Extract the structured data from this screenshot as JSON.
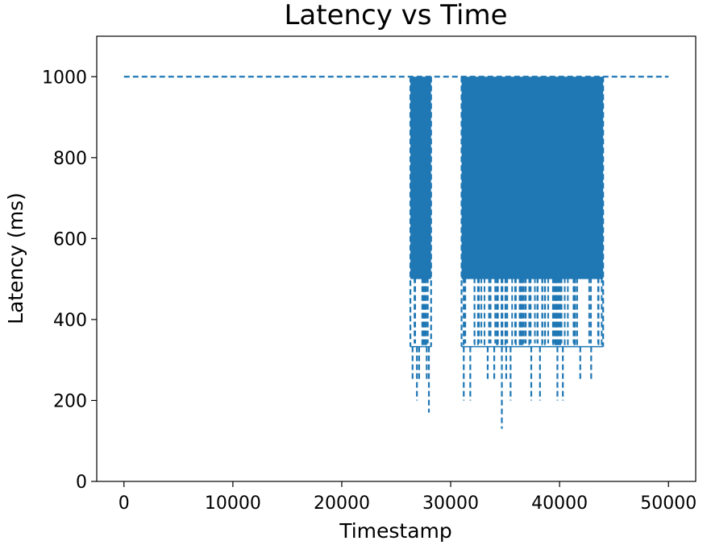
{
  "chart_data": {
    "type": "line",
    "title": "Latency vs Time",
    "xlabel": "Timestamp",
    "ylabel": "Latency (ms)",
    "xlim": [
      -2500,
      52500
    ],
    "ylim": [
      0,
      1100
    ],
    "xticks": [
      0,
      10000,
      20000,
      30000,
      40000,
      50000
    ],
    "xtick_labels": [
      "0",
      "10000",
      "20000",
      "30000",
      "40000",
      "50000"
    ],
    "yticks": [
      0,
      200,
      400,
      600,
      800,
      1000
    ],
    "ytick_labels": [
      "0",
      "200",
      "400",
      "600",
      "800",
      "1000"
    ],
    "grid": false,
    "line_style": "dashed",
    "colors": {
      "series": "#1f77b4",
      "axes": "#000000",
      "background": "#ffffff"
    },
    "series": [
      {
        "baseline": 1000,
        "x_range": [
          0,
          50000
        ],
        "bursts": [
          {
            "x_range": [
              26300,
              28200
            ],
            "band_top": 1000,
            "band_bottom": 500,
            "floor": 333,
            "low_spikes": [
              {
                "x": 26500,
                "y": 250
              },
              {
                "x": 26900,
                "y": 200
              },
              {
                "x": 27100,
                "y": 250
              },
              {
                "x": 27800,
                "y": 250
              },
              {
                "x": 28000,
                "y": 170
              }
            ]
          },
          {
            "x_range": [
              31000,
              44000
            ],
            "band_top": 1000,
            "band_bottom": 500,
            "floor": 333,
            "low_spikes": [
              {
                "x": 31200,
                "y": 200
              },
              {
                "x": 31800,
                "y": 200
              },
              {
                "x": 33400,
                "y": 250
              },
              {
                "x": 34000,
                "y": 250
              },
              {
                "x": 34700,
                "y": 130
              },
              {
                "x": 35100,
                "y": 250
              },
              {
                "x": 35500,
                "y": 200
              },
              {
                "x": 37400,
                "y": 200
              },
              {
                "x": 38200,
                "y": 200
              },
              {
                "x": 39800,
                "y": 200
              },
              {
                "x": 40300,
                "y": 200
              },
              {
                "x": 41900,
                "y": 250
              },
              {
                "x": 42900,
                "y": 250
              }
            ]
          }
        ]
      }
    ]
  }
}
